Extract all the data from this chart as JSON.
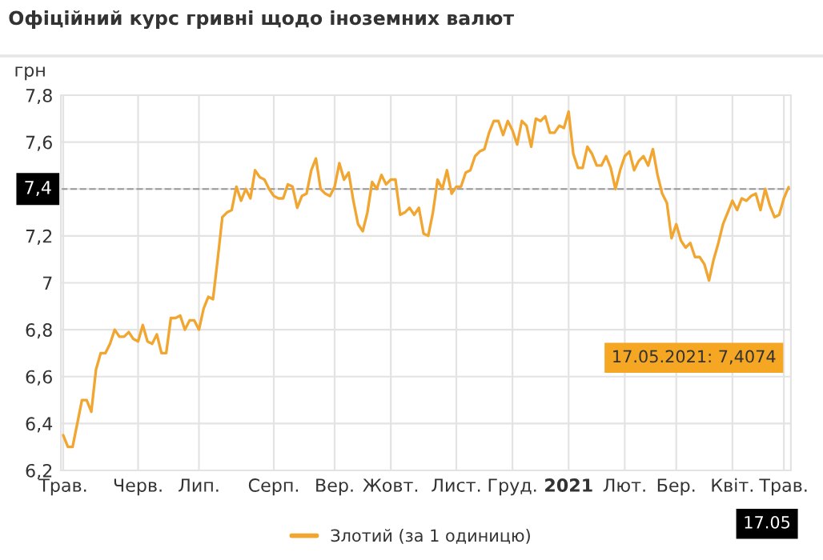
{
  "chart_data": {
    "type": "line",
    "title": "Офіційний курс гривні щодо іноземних валют",
    "ylabel": "грн",
    "categories": [
      "Трав.",
      null,
      null,
      null,
      null,
      null,
      null,
      null,
      null,
      null,
      null,
      null,
      null,
      null,
      null,
      null,
      "Черв.",
      null,
      null,
      null,
      null,
      null,
      null,
      null,
      null,
      null,
      null,
      null,
      null,
      "Лип.",
      null,
      null,
      null,
      null,
      null,
      null,
      null,
      null,
      null,
      null,
      null,
      null,
      null,
      null,
      null,
      "Серп.",
      null,
      null,
      null,
      null,
      null,
      null,
      null,
      null,
      null,
      null,
      null,
      null,
      "Вер.",
      null,
      null,
      null,
      null,
      null,
      null,
      null,
      null,
      null,
      null,
      null,
      "Жовт.",
      null,
      null,
      null,
      null,
      null,
      null,
      null,
      null,
      null,
      null,
      null,
      null,
      null,
      "Лист.",
      null,
      null,
      null,
      null,
      null,
      null,
      null,
      null,
      null,
      null,
      null,
      "Груд.",
      null,
      null,
      null,
      null,
      null,
      null,
      null,
      null,
      null,
      null,
      null,
      "2021",
      null,
      null,
      null,
      null,
      null,
      null,
      null,
      null,
      null,
      null,
      null,
      "Лют.",
      null,
      null,
      null,
      null,
      null,
      null,
      null,
      null,
      null,
      null,
      "Бер.",
      null,
      null,
      null,
      null,
      null,
      null,
      null,
      null,
      null,
      null,
      null,
      "Квіт.",
      null,
      null,
      null,
      null,
      null,
      null,
      null,
      null,
      null,
      null,
      "Трав.",
      null
    ],
    "series": [
      {
        "name": "Злотий (за 1 одиницю)",
        "color": "#f0a630",
        "values": [
          6.35,
          6.3,
          6.3,
          6.4,
          6.5,
          6.5,
          6.45,
          6.63,
          6.7,
          6.7,
          6.74,
          6.8,
          6.77,
          6.77,
          6.79,
          6.76,
          6.75,
          6.82,
          6.75,
          6.74,
          6.78,
          6.7,
          6.7,
          6.85,
          6.85,
          6.86,
          6.8,
          6.84,
          6.84,
          6.8,
          6.89,
          6.94,
          6.93,
          7.1,
          7.28,
          7.3,
          7.31,
          7.41,
          7.35,
          7.4,
          7.36,
          7.48,
          7.45,
          7.44,
          7.4,
          7.37,
          7.36,
          7.36,
          7.42,
          7.41,
          7.32,
          7.37,
          7.38,
          7.48,
          7.53,
          7.4,
          7.38,
          7.37,
          7.41,
          7.51,
          7.44,
          7.47,
          7.35,
          7.25,
          7.22,
          7.3,
          7.43,
          7.4,
          7.46,
          7.42,
          7.44,
          7.44,
          7.29,
          7.3,
          7.32,
          7.29,
          7.32,
          7.21,
          7.2,
          7.3,
          7.44,
          7.4,
          7.48,
          7.38,
          7.41,
          7.41,
          7.47,
          7.48,
          7.54,
          7.56,
          7.57,
          7.64,
          7.69,
          7.69,
          7.63,
          7.69,
          7.65,
          7.59,
          7.69,
          7.67,
          7.58,
          7.7,
          7.69,
          7.71,
          7.64,
          7.64,
          7.67,
          7.66,
          7.73,
          7.55,
          7.49,
          7.49,
          7.58,
          7.55,
          7.5,
          7.5,
          7.54,
          7.49,
          7.4,
          7.48,
          7.54,
          7.56,
          7.48,
          7.52,
          7.54,
          7.5,
          7.57,
          7.46,
          7.38,
          7.34,
          7.19,
          7.25,
          7.18,
          7.15,
          7.17,
          7.11,
          7.11,
          7.08,
          7.01,
          7.1,
          7.17,
          7.25,
          7.3,
          7.35,
          7.31,
          7.36,
          7.35,
          7.37,
          7.38,
          7.31,
          7.4,
          7.33,
          7.28,
          7.29,
          7.36,
          7.4074
        ]
      }
    ],
    "ylim": [
      6.2,
      7.8
    ],
    "yticks": [
      {
        "value": 6.2,
        "label": "6,2"
      },
      {
        "value": 6.4,
        "label": "6,4"
      },
      {
        "value": 6.6,
        "label": "6,6"
      },
      {
        "value": 6.8,
        "label": "6,8"
      },
      7,
      {
        "value": 7.2,
        "label": "7,2"
      },
      {
        "value": 7.4,
        "label": "7,4"
      },
      {
        "value": 7.6,
        "label": "7,6"
      },
      {
        "value": 7.8,
        "label": "7,8"
      }
    ],
    "ref_lines": [
      {
        "axis": "y",
        "value": 7.4,
        "label": "7,4",
        "color": "#999999",
        "line_style": "dashed"
      }
    ],
    "annotations": [
      "17.05.2021: 7,4074",
      "17.05"
    ],
    "grid": true,
    "legend": "bottom",
    "marker": "none",
    "line_style": "solid"
  }
}
